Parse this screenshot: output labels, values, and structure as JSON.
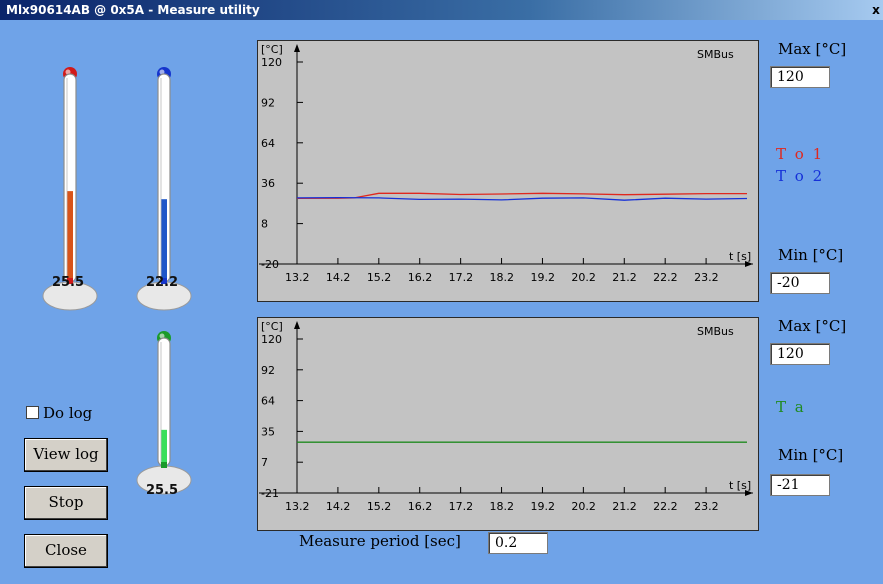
{
  "window": {
    "title": "Mlx90614AB @ 0x5A - Measure utility",
    "close_glyph": "x"
  },
  "thermometers": [
    {
      "value_text": "25.5",
      "color": "#d11a1a",
      "fill_color": "#d8541a",
      "level": 0.44
    },
    {
      "value_text": "22.2",
      "color": "#1535cc",
      "fill_color": "#1f56c8",
      "level": 0.4
    },
    {
      "value_text": "25.5",
      "color": "#1a9a2a",
      "fill_color": "#3adf5a",
      "level": 0.28
    }
  ],
  "chart_top": {
    "ylabel": "[°C]",
    "xlabel": "t [s]",
    "source": "SMBus",
    "yticks": [
      "120",
      "92",
      "64",
      "36",
      "8",
      "-20"
    ],
    "xticks": [
      "13.2",
      "14.2",
      "15.2",
      "16.2",
      "17.2",
      "18.2",
      "19.2",
      "20.2",
      "21.2",
      "22.2",
      "23.2"
    ],
    "max_label": "Max [°C]",
    "max_value": "120",
    "min_label": "Min [°C]",
    "min_value": "-20",
    "legend": [
      "T o 1",
      "T o 2"
    ]
  },
  "chart_bottom": {
    "ylabel": "[°C]",
    "xlabel": "t [s]",
    "source": "SMBus",
    "yticks": [
      "120",
      "92",
      "64",
      "35",
      "7",
      "-21"
    ],
    "xticks": [
      "13.2",
      "14.2",
      "15.2",
      "16.2",
      "17.2",
      "18.2",
      "19.2",
      "20.2",
      "21.2",
      "22.2",
      "23.2"
    ],
    "max_label": "Max [°C]",
    "max_value": "120",
    "min_label": "Min [°C]",
    "min_value": "-21",
    "legend": [
      "T a"
    ]
  },
  "chart_data": [
    {
      "type": "line",
      "ylim": [
        -20,
        120
      ],
      "xlim": [
        13.2,
        24.2
      ],
      "series": [
        {
          "name": "T o 1",
          "color": "#e0281e",
          "x": [
            13.2,
            14.2,
            14.6,
            15.2,
            16.2,
            17.2,
            18.2,
            19.2,
            20.2,
            21.2,
            22.2,
            23.2,
            24.2
          ],
          "y": [
            25.5,
            25.6,
            25.8,
            29.0,
            29.0,
            28.2,
            28.5,
            29.0,
            28.6,
            28.0,
            28.4,
            28.8,
            28.8
          ]
        },
        {
          "name": "T o 2",
          "color": "#1530d8",
          "x": [
            13.2,
            14.2,
            15.2,
            16.2,
            17.2,
            18.2,
            19.2,
            20.2,
            21.2,
            22.2,
            23.2,
            24.2
          ],
          "y": [
            25.8,
            26.0,
            25.8,
            24.8,
            25.0,
            24.4,
            25.6,
            25.8,
            24.2,
            25.6,
            25.0,
            25.4
          ]
        }
      ]
    },
    {
      "type": "line",
      "ylim": [
        -21,
        120
      ],
      "xlim": [
        13.2,
        24.2
      ],
      "series": [
        {
          "name": "T a",
          "color": "#1f8a1f",
          "x": [
            13.2,
            24.2
          ],
          "y": [
            25.5,
            25.5
          ]
        }
      ]
    }
  ],
  "legend_colors": {
    "to1": "#e0281e",
    "to2": "#1530d8",
    "ta": "#1f8a1f"
  },
  "controls": {
    "do_log_label": "Do log",
    "do_log_checked": false,
    "view_log_label": "View log",
    "stop_label": "Stop",
    "close_label": "Close",
    "period_label": "Measure period [sec]",
    "period_value": "0.2"
  }
}
